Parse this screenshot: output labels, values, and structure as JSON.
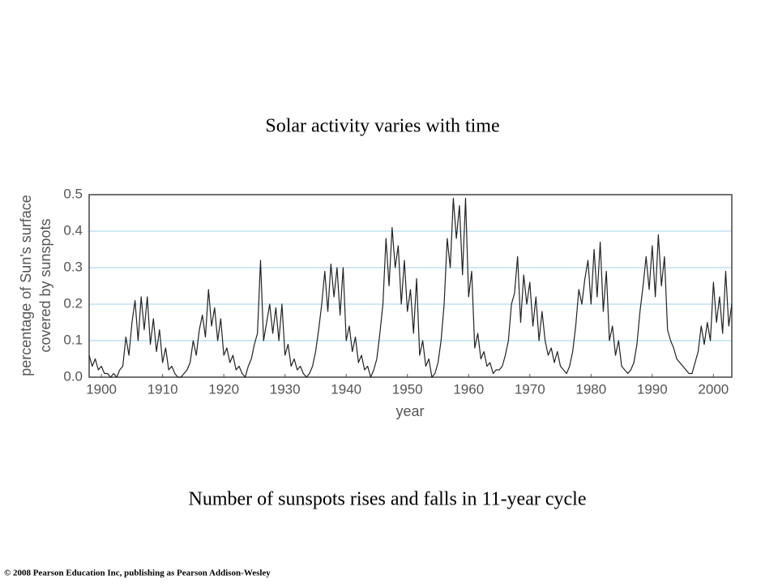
{
  "chart_data": {
    "type": "line",
    "title": "Solar activity varies with time",
    "x_label": "year",
    "y_label": [
      "percentage of Sun's surface",
      "covered by sunspots"
    ],
    "caption": "Number of sunspots rises and falls in 11-year cycle",
    "footer": "© 2008 Pearson Education Inc, publishing as Pearson Addison-Wesley",
    "color": "#222222",
    "grid": true,
    "grid_color": "#9fd3ec",
    "xlim": [
      1898,
      2003
    ],
    "xticks": [
      1900,
      1910,
      1920,
      1930,
      1940,
      1950,
      1960,
      1970,
      1980,
      1990,
      2000
    ],
    "ylim": [
      0,
      0.5
    ],
    "yticks": [
      {
        "value": 0,
        "label": "0.0"
      },
      0.1,
      0.2,
      0.3,
      0.4,
      0.5
    ],
    "x": [
      1898,
      1898.5,
      1899,
      1899.5,
      1900,
      1900.5,
      1901,
      1901.5,
      1902,
      1902.5,
      1903,
      1903.5,
      1904,
      1904.5,
      1905,
      1905.5,
      1906,
      1906.5,
      1907,
      1907.5,
      1908,
      1908.5,
      1909,
      1909.5,
      1910,
      1910.5,
      1911,
      1911.5,
      1912,
      1912.5,
      1913,
      1913.5,
      1914,
      1914.5,
      1915,
      1915.5,
      1916,
      1916.5,
      1917,
      1917.5,
      1918,
      1918.5,
      1919,
      1919.5,
      1920,
      1920.5,
      1921,
      1921.5,
      1922,
      1922.5,
      1923,
      1923.5,
      1924,
      1924.5,
      1925,
      1925.5,
      1926,
      1926.5,
      1927,
      1927.5,
      1928,
      1928.5,
      1929,
      1929.5,
      1930,
      1930.5,
      1931,
      1931.5,
      1932,
      1932.5,
      1933,
      1933.5,
      1934,
      1934.5,
      1935,
      1935.5,
      1936,
      1936.5,
      1937,
      1937.5,
      1938,
      1938.5,
      1939,
      1939.5,
      1940,
      1940.5,
      1941,
      1941.5,
      1942,
      1942.5,
      1943,
      1943.5,
      1944,
      1944.5,
      1945,
      1945.5,
      1946,
      1946.5,
      1947,
      1947.5,
      1948,
      1948.5,
      1949,
      1949.5,
      1950,
      1950.5,
      1951,
      1951.5,
      1952,
      1952.5,
      1953,
      1953.5,
      1954,
      1954.5,
      1955,
      1955.5,
      1956,
      1956.5,
      1957,
      1957.5,
      1958,
      1958.5,
      1959,
      1959.5,
      1960,
      1960.5,
      1961,
      1961.5,
      1962,
      1962.5,
      1963,
      1963.5,
      1964,
      1964.5,
      1965,
      1965.5,
      1966,
      1966.5,
      1967,
      1967.5,
      1968,
      1968.5,
      1969,
      1969.5,
      1970,
      1970.5,
      1971,
      1971.5,
      1972,
      1972.5,
      1973,
      1973.5,
      1974,
      1974.5,
      1975,
      1975.5,
      1976,
      1976.5,
      1977,
      1977.5,
      1978,
      1978.5,
      1979,
      1979.5,
      1980,
      1980.5,
      1981,
      1981.5,
      1982,
      1982.5,
      1983,
      1983.5,
      1984,
      1984.5,
      1985,
      1985.5,
      1986,
      1986.5,
      1987,
      1987.5,
      1988,
      1988.5,
      1989,
      1989.5,
      1990,
      1990.5,
      1991,
      1991.5,
      1992,
      1992.5,
      1993,
      1993.5,
      1994,
      1994.5,
      1995,
      1995.5,
      1996,
      1996.5,
      1997,
      1997.5,
      1998,
      1998.5,
      1999,
      1999.5,
      2000,
      2000.5,
      2001,
      2001.5,
      2002,
      2002.5,
      2003
    ],
    "values": [
      0.06,
      0.03,
      0.05,
      0.02,
      0.03,
      0.01,
      0.01,
      0,
      0.01,
      0,
      0.02,
      0.03,
      0.11,
      0.06,
      0.15,
      0.21,
      0.1,
      0.22,
      0.13,
      0.22,
      0.09,
      0.16,
      0.07,
      0.13,
      0.04,
      0.08,
      0.02,
      0.03,
      0.01,
      0,
      0,
      0.01,
      0.02,
      0.04,
      0.1,
      0.06,
      0.13,
      0.17,
      0.11,
      0.24,
      0.14,
      0.19,
      0.1,
      0.16,
      0.06,
      0.08,
      0.04,
      0.06,
      0.02,
      0.03,
      0.01,
      0,
      0.03,
      0.05,
      0.09,
      0.12,
      0.32,
      0.1,
      0.15,
      0.2,
      0.12,
      0.19,
      0.1,
      0.2,
      0.06,
      0.09,
      0.03,
      0.05,
      0.02,
      0.03,
      0.01,
      0,
      0.01,
      0.03,
      0.07,
      0.13,
      0.2,
      0.29,
      0.18,
      0.31,
      0.22,
      0.3,
      0.17,
      0.3,
      0.1,
      0.14,
      0.07,
      0.11,
      0.04,
      0.06,
      0.02,
      0.03,
      0,
      0.02,
      0.05,
      0.12,
      0.2,
      0.38,
      0.25,
      0.41,
      0.3,
      0.36,
      0.2,
      0.32,
      0.18,
      0.24,
      0.12,
      0.27,
      0.06,
      0.1,
      0.03,
      0.05,
      0,
      0.01,
      0.04,
      0.1,
      0.2,
      0.38,
      0.3,
      0.49,
      0.38,
      0.47,
      0.28,
      0.49,
      0.22,
      0.29,
      0.08,
      0.12,
      0.05,
      0.07,
      0.03,
      0.04,
      0.01,
      0.02,
      0.02,
      0.03,
      0.06,
      0.1,
      0.2,
      0.23,
      0.33,
      0.15,
      0.28,
      0.2,
      0.26,
      0.14,
      0.22,
      0.1,
      0.18,
      0.1,
      0.06,
      0.08,
      0.04,
      0.07,
      0.03,
      0.02,
      0.01,
      0.03,
      0.07,
      0.14,
      0.24,
      0.2,
      0.27,
      0.32,
      0.2,
      0.35,
      0.22,
      0.37,
      0.18,
      0.29,
      0.1,
      0.14,
      0.06,
      0.1,
      0.03,
      0.02,
      0.01,
      0.02,
      0.04,
      0.09,
      0.18,
      0.25,
      0.33,
      0.24,
      0.36,
      0.22,
      0.39,
      0.25,
      0.33,
      0.13,
      0.1,
      0.08,
      0.05,
      0.04,
      0.03,
      0.02,
      0.01,
      0.01,
      0.04,
      0.07,
      0.14,
      0.09,
      0.15,
      0.1,
      0.26,
      0.15,
      0.22,
      0.12,
      0.29,
      0.14,
      0.2
    ]
  }
}
